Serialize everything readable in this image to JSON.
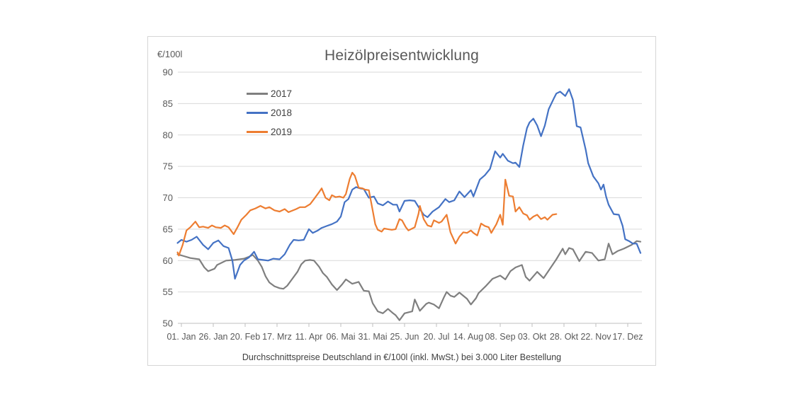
{
  "chart_data": {
    "type": "line",
    "title": "Heizölpreisentwicklung",
    "y_axis_unit": "€/100l",
    "caption": "Durchschnittspreise Deutschland in €/100l (inkl. MwSt.) bei 3.000 Liter Bestellung",
    "grid": true,
    "legend_position": "inside-top-left",
    "ylim": [
      50,
      90
    ],
    "y_ticks": [
      50,
      55,
      60,
      65,
      70,
      75,
      80,
      85,
      90
    ],
    "x_tick_labels": [
      "01. Jan",
      "26. Jan",
      "20. Feb",
      "17. Mrz",
      "11. Apr",
      "06. Mai",
      "31. Mai",
      "25. Jun",
      "20. Jul",
      "14. Aug",
      "08. Sep",
      "03. Okt",
      "28. Okt",
      "22. Nov",
      "17. Dez"
    ],
    "x_tick_days": [
      0,
      25,
      50,
      75,
      100,
      125,
      150,
      175,
      200,
      225,
      250,
      275,
      300,
      325,
      350
    ],
    "xlim_days": [
      -3,
      362
    ],
    "axis_color": "#bfbfbf",
    "gridline_color": "#d9d9d9",
    "label_color": "#595959",
    "series": [
      {
        "name": "2017",
        "color": "#7f7f7f",
        "points": [
          [
            -3,
            61.0
          ],
          [
            2,
            60.7
          ],
          [
            7,
            60.4
          ],
          [
            14,
            60.2
          ],
          [
            18,
            58.9
          ],
          [
            21,
            58.3
          ],
          [
            26,
            58.7
          ],
          [
            28,
            59.3
          ],
          [
            35,
            60.0
          ],
          [
            42,
            60.1
          ],
          [
            49,
            60.3
          ],
          [
            53,
            60.6
          ],
          [
            56,
            60.9
          ],
          [
            60,
            60.0
          ],
          [
            63,
            59.0
          ],
          [
            66,
            57.5
          ],
          [
            69,
            56.5
          ],
          [
            73,
            55.9
          ],
          [
            77,
            55.6
          ],
          [
            80,
            55.5
          ],
          [
            83,
            56.0
          ],
          [
            87,
            57.1
          ],
          [
            91,
            58.2
          ],
          [
            94,
            59.4
          ],
          [
            97,
            60.0
          ],
          [
            101,
            60.1
          ],
          [
            104,
            60.0
          ],
          [
            108,
            59.0
          ],
          [
            111,
            58.0
          ],
          [
            114,
            57.4
          ],
          [
            118,
            56.2
          ],
          [
            122,
            55.3
          ],
          [
            126,
            56.2
          ],
          [
            129,
            57.0
          ],
          [
            134,
            56.3
          ],
          [
            139,
            56.6
          ],
          [
            143,
            55.2
          ],
          [
            147,
            55.1
          ],
          [
            150,
            53.2
          ],
          [
            154,
            51.9
          ],
          [
            158,
            51.6
          ],
          [
            162,
            52.3
          ],
          [
            166,
            51.6
          ],
          [
            168,
            51.3
          ],
          [
            171,
            50.5
          ],
          [
            175,
            51.6
          ],
          [
            181,
            51.9
          ],
          [
            183,
            53.8
          ],
          [
            187,
            52.0
          ],
          [
            192,
            53.1
          ],
          [
            194,
            53.3
          ],
          [
            198,
            53.0
          ],
          [
            202,
            52.4
          ],
          [
            206,
            54.2
          ],
          [
            208,
            55.0
          ],
          [
            211,
            54.4
          ],
          [
            214,
            54.2
          ],
          [
            218,
            54.9
          ],
          [
            224,
            53.9
          ],
          [
            227,
            53.0
          ],
          [
            231,
            54.0
          ],
          [
            233,
            54.8
          ],
          [
            239,
            56.0
          ],
          [
            244,
            57.1
          ],
          [
            250,
            57.6
          ],
          [
            254,
            57.0
          ],
          [
            258,
            58.3
          ],
          [
            262,
            58.9
          ],
          [
            267,
            59.3
          ],
          [
            270,
            57.4
          ],
          [
            273,
            56.8
          ],
          [
            279,
            58.2
          ],
          [
            284,
            57.2
          ],
          [
            291,
            59.3
          ],
          [
            294,
            60.2
          ],
          [
            299,
            61.9
          ],
          [
            301,
            61.0
          ],
          [
            304,
            62.0
          ],
          [
            307,
            61.8
          ],
          [
            312,
            59.9
          ],
          [
            317,
            61.4
          ],
          [
            322,
            61.2
          ],
          [
            327,
            60.0
          ],
          [
            332,
            60.2
          ],
          [
            335,
            62.7
          ],
          [
            338,
            61.0
          ],
          [
            342,
            61.5
          ],
          [
            347,
            61.9
          ],
          [
            353,
            62.5
          ],
          [
            357,
            63.1
          ],
          [
            360,
            63.0
          ]
        ]
      },
      {
        "name": "2018",
        "color": "#4472c4",
        "points": [
          [
            -3,
            62.8
          ],
          [
            0,
            63.3
          ],
          [
            4,
            63.0
          ],
          [
            8,
            63.3
          ],
          [
            12,
            63.8
          ],
          [
            17,
            62.5
          ],
          [
            21,
            61.8
          ],
          [
            25,
            62.8
          ],
          [
            29,
            63.2
          ],
          [
            33,
            62.3
          ],
          [
            37,
            62.0
          ],
          [
            40,
            60.0
          ],
          [
            42,
            57.1
          ],
          [
            46,
            59.3
          ],
          [
            49,
            60.0
          ],
          [
            53,
            60.5
          ],
          [
            57,
            61.4
          ],
          [
            60,
            60.2
          ],
          [
            64,
            60.1
          ],
          [
            68,
            60.0
          ],
          [
            72,
            60.3
          ],
          [
            77,
            60.2
          ],
          [
            81,
            61.0
          ],
          [
            85,
            62.5
          ],
          [
            88,
            63.3
          ],
          [
            92,
            63.2
          ],
          [
            96,
            63.3
          ],
          [
            100,
            65.0
          ],
          [
            103,
            64.4
          ],
          [
            107,
            64.8
          ],
          [
            110,
            65.2
          ],
          [
            114,
            65.5
          ],
          [
            118,
            65.8
          ],
          [
            122,
            66.2
          ],
          [
            125,
            67.0
          ],
          [
            128,
            69.3
          ],
          [
            131,
            69.8
          ],
          [
            134,
            71.3
          ],
          [
            137,
            71.7
          ],
          [
            140,
            71.5
          ],
          [
            143,
            71.4
          ],
          [
            147,
            70.0
          ],
          [
            151,
            70.2
          ],
          [
            154,
            69.1
          ],
          [
            158,
            68.8
          ],
          [
            162,
            69.4
          ],
          [
            166,
            68.9
          ],
          [
            169,
            68.9
          ],
          [
            171,
            67.8
          ],
          [
            175,
            69.5
          ],
          [
            179,
            69.6
          ],
          [
            183,
            69.5
          ],
          [
            187,
            68.2
          ],
          [
            190,
            67.3
          ],
          [
            193,
            66.9
          ],
          [
            197,
            67.8
          ],
          [
            202,
            68.5
          ],
          [
            207,
            69.8
          ],
          [
            210,
            69.3
          ],
          [
            214,
            69.6
          ],
          [
            218,
            71.0
          ],
          [
            222,
            70.1
          ],
          [
            227,
            71.2
          ],
          [
            229,
            70.2
          ],
          [
            234,
            72.9
          ],
          [
            238,
            73.6
          ],
          [
            242,
            74.6
          ],
          [
            246,
            77.4
          ],
          [
            250,
            76.4
          ],
          [
            252,
            77.0
          ],
          [
            256,
            75.9
          ],
          [
            260,
            75.5
          ],
          [
            262,
            75.6
          ],
          [
            265,
            74.9
          ],
          [
            268,
            78.3
          ],
          [
            271,
            81.1
          ],
          [
            273,
            82.0
          ],
          [
            276,
            82.6
          ],
          [
            279,
            81.5
          ],
          [
            282,
            79.8
          ],
          [
            285,
            81.5
          ],
          [
            288,
            84.1
          ],
          [
            292,
            85.8
          ],
          [
            294,
            86.6
          ],
          [
            297,
            86.9
          ],
          [
            301,
            86.2
          ],
          [
            304,
            87.3
          ],
          [
            307,
            85.6
          ],
          [
            310,
            81.4
          ],
          [
            313,
            81.2
          ],
          [
            317,
            77.7
          ],
          [
            319,
            75.5
          ],
          [
            323,
            73.4
          ],
          [
            327,
            72.3
          ],
          [
            329,
            71.3
          ],
          [
            331,
            72.1
          ],
          [
            333,
            70.2
          ],
          [
            335,
            68.9
          ],
          [
            339,
            67.4
          ],
          [
            343,
            67.3
          ],
          [
            346,
            65.5
          ],
          [
            348,
            63.4
          ],
          [
            351,
            63.1
          ],
          [
            354,
            62.7
          ],
          [
            357,
            62.7
          ],
          [
            360,
            61.2
          ]
        ]
      },
      {
        "name": "2019",
        "color": "#ed7d31",
        "points": [
          [
            -3,
            61.3
          ],
          [
            -2,
            60.8
          ],
          [
            1,
            62.5
          ],
          [
            4,
            64.8
          ],
          [
            7,
            65.3
          ],
          [
            11,
            66.2
          ],
          [
            14,
            65.3
          ],
          [
            17,
            65.4
          ],
          [
            21,
            65.2
          ],
          [
            24,
            65.6
          ],
          [
            27,
            65.3
          ],
          [
            31,
            65.2
          ],
          [
            34,
            65.6
          ],
          [
            37,
            65.3
          ],
          [
            41,
            64.2
          ],
          [
            44,
            65.3
          ],
          [
            47,
            66.5
          ],
          [
            51,
            67.3
          ],
          [
            54,
            68.0
          ],
          [
            58,
            68.3
          ],
          [
            62,
            68.7
          ],
          [
            66,
            68.3
          ],
          [
            69,
            68.5
          ],
          [
            73,
            68.0
          ],
          [
            77,
            67.8
          ],
          [
            81,
            68.2
          ],
          [
            84,
            67.7
          ],
          [
            90,
            68.2
          ],
          [
            93,
            68.5
          ],
          [
            97,
            68.5
          ],
          [
            101,
            69.0
          ],
          [
            104,
            69.8
          ],
          [
            108,
            70.9
          ],
          [
            110,
            71.5
          ],
          [
            113,
            70.0
          ],
          [
            116,
            69.6
          ],
          [
            118,
            70.4
          ],
          [
            121,
            70.1
          ],
          [
            124,
            70.2
          ],
          [
            127,
            70.0
          ],
          [
            129,
            70.6
          ],
          [
            132,
            73.0
          ],
          [
            134,
            74.0
          ],
          [
            136,
            73.5
          ],
          [
            139,
            71.6
          ],
          [
            142,
            71.5
          ],
          [
            144,
            71.3
          ],
          [
            147,
            71.2
          ],
          [
            150,
            68.0
          ],
          [
            152,
            65.8
          ],
          [
            154,
            64.9
          ],
          [
            157,
            64.6
          ],
          [
            159,
            65.1
          ],
          [
            162,
            65.0
          ],
          [
            165,
            64.9
          ],
          [
            168,
            65.0
          ],
          [
            171,
            66.6
          ],
          [
            173,
            66.4
          ],
          [
            176,
            65.3
          ],
          [
            178,
            64.8
          ],
          [
            181,
            65.1
          ],
          [
            183,
            65.3
          ],
          [
            186,
            67.5
          ],
          [
            187,
            68.7
          ],
          [
            190,
            66.6
          ],
          [
            193,
            65.6
          ],
          [
            196,
            65.4
          ],
          [
            198,
            66.4
          ],
          [
            202,
            66.0
          ],
          [
            204,
            66.2
          ],
          [
            208,
            67.3
          ],
          [
            211,
            64.5
          ],
          [
            215,
            62.7
          ],
          [
            218,
            63.8
          ],
          [
            221,
            64.5
          ],
          [
            224,
            64.4
          ],
          [
            227,
            64.8
          ],
          [
            229,
            64.4
          ],
          [
            232,
            64.0
          ],
          [
            235,
            65.9
          ],
          [
            238,
            65.5
          ],
          [
            241,
            65.3
          ],
          [
            243,
            64.4
          ],
          [
            247,
            65.8
          ],
          [
            250,
            67.3
          ],
          [
            252,
            65.7
          ],
          [
            254,
            72.9
          ],
          [
            257,
            70.3
          ],
          [
            260,
            70.2
          ],
          [
            262,
            67.8
          ],
          [
            265,
            68.5
          ],
          [
            268,
            67.5
          ],
          [
            271,
            67.2
          ],
          [
            273,
            66.5
          ],
          [
            276,
            67.0
          ],
          [
            279,
            67.3
          ],
          [
            282,
            66.6
          ],
          [
            285,
            66.9
          ],
          [
            287,
            66.5
          ],
          [
            291,
            67.3
          ],
          [
            294,
            67.4
          ]
        ]
      }
    ]
  }
}
